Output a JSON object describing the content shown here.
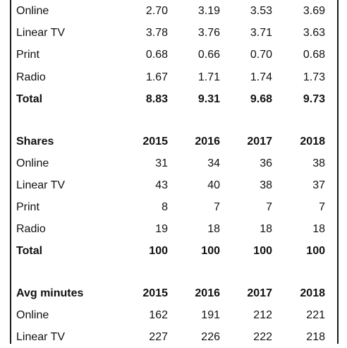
{
  "sections": [
    {
      "rows": [
        {
          "label": "Online",
          "values": [
            "2.70",
            "3.19",
            "3.53",
            "3.69"
          ]
        },
        {
          "label": "Linear TV",
          "values": [
            "3.78",
            "3.76",
            "3.71",
            "3.63"
          ]
        },
        {
          "label": "Print",
          "values": [
            "0.68",
            "0.66",
            "0.70",
            "0.68"
          ]
        },
        {
          "label": "Radio",
          "values": [
            "1.67",
            "1.71",
            "1.74",
            "1.73"
          ]
        },
        {
          "label": "Total",
          "values": [
            "8.83",
            "9.31",
            "9.68",
            "9.73"
          ]
        }
      ]
    },
    {
      "header": {
        "label": "Shares",
        "values": [
          "2015",
          "2016",
          "2017",
          "2018"
        ]
      },
      "rows": [
        {
          "label": "Online",
          "values": [
            "31",
            "34",
            "36",
            "38"
          ]
        },
        {
          "label": "Linear TV",
          "values": [
            "43",
            "40",
            "38",
            "37"
          ]
        },
        {
          "label": "Print",
          "values": [
            "8",
            "7",
            "7",
            "7"
          ]
        },
        {
          "label": "Radio",
          "values": [
            "19",
            "18",
            "18",
            "18"
          ]
        },
        {
          "label": "Total",
          "values": [
            "100",
            "100",
            "100",
            "100"
          ]
        }
      ]
    },
    {
      "header": {
        "label": "Avg minutes",
        "values": [
          "2015",
          "2016",
          "2017",
          "2018"
        ]
      },
      "rows": [
        {
          "label": "Online",
          "values": [
            "162",
            "191",
            "212",
            "221"
          ]
        },
        {
          "label": "Linear TV",
          "values": [
            "227",
            "226",
            "222",
            "218"
          ]
        }
      ]
    }
  ]
}
